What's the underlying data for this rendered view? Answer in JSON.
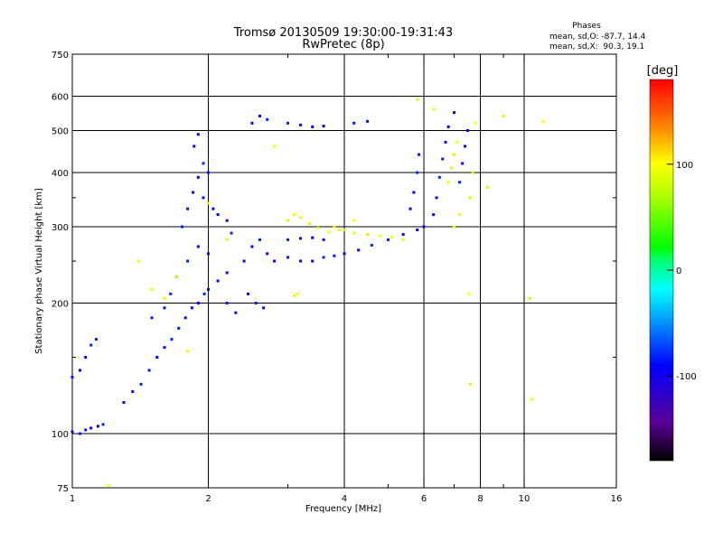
{
  "chart_data": {
    "type": "scatter",
    "title": "Tromsø 20130509 19:30:00-19:31:43",
    "subtitle": "RwPretec (8p)",
    "xlabel": "Frequency [MHz]",
    "ylabel": "Stationary phase Virtual Height [km]",
    "x_scale": "log",
    "y_scale": "log",
    "xlim": [
      1,
      16
    ],
    "ylim": [
      75,
      750
    ],
    "x_ticks": [
      "1",
      "2",
      "4",
      "6",
      "8",
      "10",
      "16"
    ],
    "y_ticks": [
      "75",
      "100",
      "200",
      "300",
      "400",
      "500",
      "600",
      "750"
    ],
    "grid_x": [
      2,
      4,
      6,
      8,
      10
    ],
    "grid_y": [
      100,
      200,
      300,
      400,
      500,
      600
    ],
    "minor_x": [
      3,
      5,
      7,
      9
    ],
    "minor_y": [
      150,
      250,
      350
    ],
    "legend": {
      "title": "Phases",
      "lines": [
        "mean, sd,O: -87.7, 14.4",
        "mean, sd,X:  90.3, 19.1"
      ]
    },
    "colorbar": {
      "label": "[deg]",
      "range": [
        -180,
        180
      ],
      "ticks": [
        {
          "value": 100,
          "label": "100"
        },
        {
          "value": 0,
          "label": "0"
        },
        {
          "value": -100,
          "label": "-100"
        }
      ]
    },
    "series": [
      {
        "name": "O",
        "mean_phase": -87.7,
        "points": [
          [
            1.0,
            101
          ],
          [
            1.04,
            100
          ],
          [
            1.07,
            102
          ],
          [
            1.1,
            103
          ],
          [
            1.14,
            104
          ],
          [
            1.17,
            105
          ],
          [
            1.0,
            135
          ],
          [
            1.04,
            140
          ],
          [
            1.07,
            150
          ],
          [
            1.1,
            160
          ],
          [
            1.13,
            165
          ],
          [
            1.3,
            118
          ],
          [
            1.36,
            125
          ],
          [
            1.42,
            130
          ],
          [
            1.48,
            140
          ],
          [
            1.54,
            150
          ],
          [
            1.6,
            158
          ],
          [
            1.66,
            165
          ],
          [
            1.72,
            175
          ],
          [
            1.78,
            185
          ],
          [
            1.84,
            195
          ],
          [
            1.9,
            200
          ],
          [
            1.96,
            210
          ],
          [
            2.0,
            215
          ],
          [
            2.1,
            225
          ],
          [
            2.2,
            235
          ],
          [
            1.75,
            300
          ],
          [
            1.8,
            330
          ],
          [
            1.85,
            360
          ],
          [
            1.9,
            390
          ],
          [
            1.95,
            420
          ],
          [
            2.0,
            400
          ],
          [
            1.86,
            460
          ],
          [
            1.9,
            490
          ],
          [
            1.7,
            230
          ],
          [
            1.8,
            250
          ],
          [
            1.9,
            270
          ],
          [
            2.0,
            260
          ],
          [
            1.65,
            210
          ],
          [
            2.2,
            200
          ],
          [
            2.3,
            190
          ],
          [
            2.4,
            250
          ],
          [
            2.5,
            270
          ],
          [
            2.6,
            280
          ],
          [
            2.7,
            260
          ],
          [
            2.8,
            250
          ],
          [
            2.45,
            210
          ],
          [
            2.55,
            200
          ],
          [
            2.65,
            195
          ],
          [
            2.5,
            520
          ],
          [
            2.6,
            540
          ],
          [
            2.7,
            530
          ],
          [
            3.0,
            255
          ],
          [
            3.2,
            250
          ],
          [
            3.4,
            250
          ],
          [
            3.6,
            255
          ],
          [
            3.8,
            257
          ],
          [
            4.0,
            260
          ],
          [
            4.3,
            265
          ],
          [
            4.6,
            272
          ],
          [
            5.0,
            280
          ],
          [
            5.4,
            288
          ],
          [
            5.8,
            295
          ],
          [
            6.0,
            300
          ],
          [
            3.0,
            280
          ],
          [
            3.2,
            282
          ],
          [
            3.4,
            283
          ],
          [
            3.6,
            280
          ],
          [
            3.0,
            520
          ],
          [
            3.2,
            515
          ],
          [
            3.4,
            510
          ],
          [
            3.6,
            512
          ],
          [
            4.2,
            520
          ],
          [
            4.5,
            525
          ],
          [
            5.6,
            330
          ],
          [
            5.7,
            360
          ],
          [
            5.8,
            400
          ],
          [
            5.85,
            440
          ],
          [
            6.3,
            320
          ],
          [
            6.4,
            350
          ],
          [
            6.5,
            390
          ],
          [
            6.6,
            430
          ],
          [
            6.7,
            470
          ],
          [
            6.8,
            510
          ],
          [
            7.0,
            550
          ],
          [
            7.2,
            380
          ],
          [
            7.3,
            420
          ],
          [
            7.4,
            460
          ],
          [
            7.5,
            500
          ],
          [
            1.5,
            185
          ],
          [
            1.6,
            195
          ],
          [
            2.1,
            320
          ],
          [
            2.2,
            310
          ],
          [
            2.25,
            290
          ],
          [
            1.95,
            350
          ],
          [
            2.05,
            330
          ]
        ]
      },
      {
        "name": "X",
        "mean_phase": 90.3,
        "points": [
          [
            3.0,
            310
          ],
          [
            3.1,
            320
          ],
          [
            3.2,
            315
          ],
          [
            3.35,
            305
          ],
          [
            3.5,
            298
          ],
          [
            3.7,
            292
          ],
          [
            3.9,
            295
          ],
          [
            4.2,
            290
          ],
          [
            4.5,
            288
          ],
          [
            4.8,
            286
          ],
          [
            5.1,
            284
          ],
          [
            5.4,
            280
          ],
          [
            3.1,
            208
          ],
          [
            3.15,
            210
          ],
          [
            6.8,
            380
          ],
          [
            6.9,
            410
          ],
          [
            7.0,
            440
          ],
          [
            7.1,
            470
          ],
          [
            7.0,
            300
          ],
          [
            7.2,
            320
          ],
          [
            7.6,
            350
          ],
          [
            7.7,
            400
          ],
          [
            7.8,
            520
          ],
          [
            6.3,
            560
          ],
          [
            5.8,
            590
          ],
          [
            9.0,
            540
          ],
          [
            11.0,
            525
          ],
          [
            1.5,
            215
          ],
          [
            1.6,
            205
          ],
          [
            1.7,
            230
          ],
          [
            1.4,
            250
          ],
          [
            2.0,
            340
          ],
          [
            3.8,
            300
          ],
          [
            4.0,
            295
          ],
          [
            4.2,
            310
          ],
          [
            2.8,
            460
          ],
          [
            2.2,
            280
          ],
          [
            7.6,
            130
          ],
          [
            7.55,
            210
          ],
          [
            1.2,
            76
          ],
          [
            1.8,
            155
          ],
          [
            8.3,
            370
          ],
          [
            10.3,
            205
          ],
          [
            10.4,
            120
          ]
        ]
      }
    ]
  }
}
